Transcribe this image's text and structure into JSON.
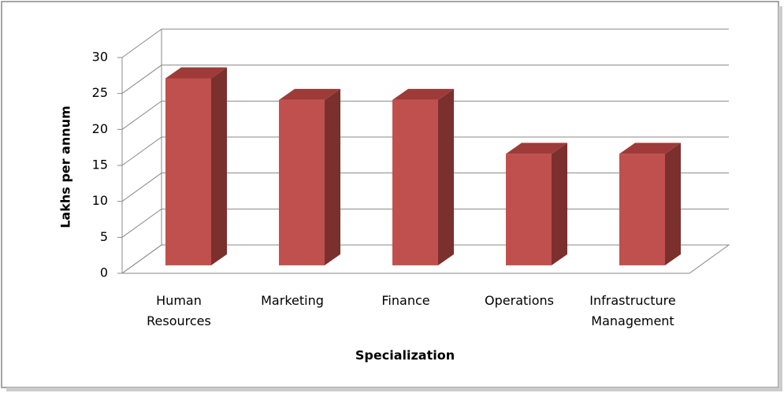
{
  "chart_data": {
    "type": "bar3d",
    "x_label": "Specialization",
    "y_label": "Lakhs per annum",
    "categories": [
      "Human Resources",
      "Marketing",
      "Finance",
      "Operations",
      "Infrastructure Management"
    ],
    "values": [
      26,
      23,
      23,
      15.5,
      15.5
    ],
    "color": "#c0504d",
    "ylim": [
      0,
      30
    ],
    "yticks": [
      0,
      5,
      10,
      15,
      20,
      25,
      30
    ],
    "grid": true
  }
}
